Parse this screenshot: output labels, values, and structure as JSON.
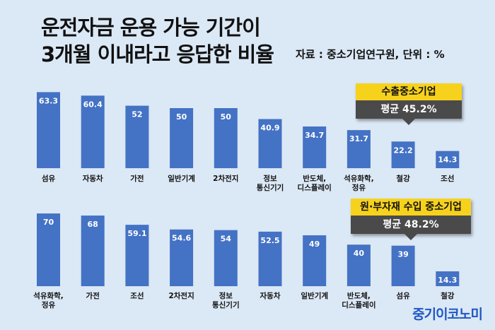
{
  "title": {
    "line1": "운전자금 운용 가능 기간이",
    "line2": "3개월 이내라고 응답한 비율"
  },
  "source": "자료 : 중소기업연구원, 단위 : %",
  "logo": "중기이코노미",
  "colors": {
    "bar": "#4472c4",
    "badge_top": "#f7d21c",
    "badge_bottom": "#4a4a4a",
    "background": "#dbe8f5"
  },
  "chart_data": [
    {
      "type": "bar",
      "title": "",
      "badge": {
        "label": "수출중소기업",
        "avg": "평균 45.2%"
      },
      "categories": [
        "섬유",
        "자동차",
        "가전",
        "일반기계",
        "2차전지",
        "정보\n통신기기",
        "반도체,\n디스플레이",
        "석유화학,\n정유",
        "철강",
        "조선"
      ],
      "values": [
        63.3,
        60.4,
        52,
        50,
        50,
        40.9,
        34.7,
        31.7,
        22.2,
        14.3
      ],
      "value_labels": [
        "63.3",
        "60.4",
        "52",
        "50",
        "50",
        "40.9",
        "34.7",
        "31.7",
        "22.2",
        "14.3"
      ],
      "ylim": [
        0,
        70
      ],
      "grid": false,
      "legend": "none"
    },
    {
      "type": "bar",
      "title": "",
      "badge": {
        "label": "원·부자재 수입 중소기업",
        "avg": "평균 48.2%"
      },
      "categories": [
        "석유화학,\n정유",
        "가전",
        "조선",
        "2차전지",
        "정보\n통신기기",
        "자동차",
        "일반기계",
        "반도체,\n디스플레이",
        "섬유",
        "철강"
      ],
      "values": [
        70,
        68,
        59.1,
        54.6,
        54,
        52.5,
        49,
        40,
        39,
        14.3
      ],
      "value_labels": [
        "70",
        "68",
        "59.1",
        "54.6",
        "54",
        "52.5",
        "49",
        "40",
        "39",
        "14.3"
      ],
      "ylim": [
        0,
        80
      ],
      "grid": false,
      "legend": "none"
    }
  ]
}
